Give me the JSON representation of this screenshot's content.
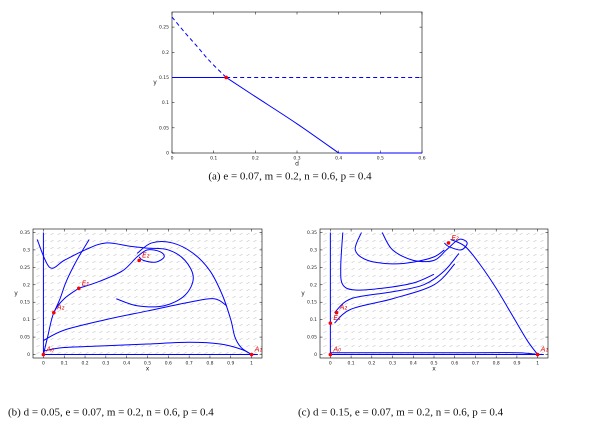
{
  "chart_data": [
    {
      "type": "line",
      "caption": "(a) e = 0.07, m = 0.2, n = 0.6, p = 0.4",
      "xlabel": "d",
      "ylabel": "y",
      "xlim": [
        0,
        0.6
      ],
      "ylim": [
        0,
        0.28
      ],
      "xticks": [
        0,
        0.1,
        0.2,
        0.3,
        0.4,
        0.5,
        0.6
      ],
      "yticks": [
        0,
        0.05,
        0.1,
        0.15,
        0.2,
        0.25
      ],
      "series": [
        {
          "color": "#0000ff",
          "dash": false,
          "x": [
            0,
            0.13
          ],
          "values": [
            0.15,
            0.15
          ]
        },
        {
          "color": "#0000ff",
          "dash": true,
          "x": [
            0.13,
            0.6
          ],
          "values": [
            0.15,
            0.15
          ]
        },
        {
          "color": "#0000ff",
          "dash": true,
          "x": [
            0,
            0.03,
            0.06,
            0.09,
            0.13
          ],
          "values": [
            0.27,
            0.24,
            0.212,
            0.183,
            0.15
          ]
        },
        {
          "color": "#0000ff",
          "dash": false,
          "x": [
            0.13,
            0.2,
            0.3,
            0.4
          ],
          "values": [
            0.15,
            0.112,
            0.058,
            0
          ]
        },
        {
          "color": "#0000ff",
          "dash": false,
          "x": [
            0.4,
            0.6
          ],
          "values": [
            0,
            0
          ]
        }
      ],
      "points": [
        {
          "x": 0.13,
          "y": 0.15,
          "color": "#ff0000"
        }
      ]
    },
    {
      "type": "line",
      "caption": "(b) d = 0.05, e = 0.07, m = 0.2, n = 0.6, p = 0.4",
      "xlabel": "x",
      "ylabel": "y",
      "xlim": [
        -0.05,
        1.05
      ],
      "ylim": [
        -0.01,
        0.36
      ],
      "vector_field": true,
      "xticks": [
        0,
        0.1,
        0.2,
        0.3,
        0.4,
        0.5,
        0.6,
        0.7,
        0.8,
        0.9,
        1
      ],
      "yticks": [
        0,
        0.05,
        0.1,
        0.15,
        0.2,
        0.25,
        0.3,
        0.35
      ],
      "series": [
        {
          "color": "#0000ff",
          "dash": false,
          "x": [
            0,
            0
          ],
          "values": [
            0.35,
            0
          ]
        },
        {
          "color": "#0000ff",
          "dash": false,
          "x": [
            0,
            1.03
          ],
          "values": [
            0,
            0
          ]
        },
        {
          "color": "#0000ff",
          "dash": false,
          "x": [
            0,
            0.02,
            0.05,
            0.1,
            0.17
          ],
          "values": [
            0,
            0.05,
            0.12,
            0.16,
            0.19
          ]
        },
        {
          "color": "#0000ff",
          "dash": false,
          "x": [
            0.22,
            0.16,
            0.11,
            0.08,
            0.05
          ],
          "values": [
            0.33,
            0.27,
            0.21,
            0.16,
            0.12
          ]
        },
        {
          "color": "#0000ff",
          "dash": false,
          "x": [
            0.17,
            0.27,
            0.38,
            0.45,
            0.5,
            0.56,
            0.58,
            0.54,
            0.48,
            0.46
          ],
          "values": [
            0.19,
            0.21,
            0.24,
            0.28,
            0.3,
            0.295,
            0.28,
            0.265,
            0.27,
            0.28
          ]
        },
        {
          "color": "#0000ff",
          "dash": false,
          "x": [
            -0.03,
            0.03,
            0.1,
            0.2,
            0.3,
            0.42,
            0.5,
            0.6,
            0.68,
            0.72,
            0.68,
            0.58,
            0.45,
            0.35
          ],
          "values": [
            0.33,
            0.25,
            0.27,
            0.3,
            0.32,
            0.31,
            0.305,
            0.3,
            0.27,
            0.22,
            0.17,
            0.14,
            0.14,
            0.16
          ]
        },
        {
          "color": "#0000ff",
          "dash": false,
          "x": [
            0.45,
            0.52,
            0.62,
            0.72,
            0.8,
            0.86,
            0.9,
            0.92,
            0.95,
            1
          ],
          "values": [
            0.29,
            0.32,
            0.32,
            0.29,
            0.24,
            0.17,
            0.1,
            0.05,
            0.02,
            0
          ]
        },
        {
          "color": "#0000ff",
          "dash": false,
          "x": [
            0,
            0.1,
            0.3,
            0.5,
            0.7,
            0.82,
            0.88
          ],
          "values": [
            0.04,
            0.07,
            0.1,
            0.125,
            0.15,
            0.16,
            0.14
          ]
        },
        {
          "color": "#0000ff",
          "dash": false,
          "x": [
            0,
            0.1,
            0.3,
            0.5,
            0.7,
            0.85,
            0.95,
            1
          ],
          "values": [
            0.01,
            0.02,
            0.025,
            0.03,
            0.035,
            0.03,
            0.015,
            0
          ]
        }
      ],
      "points": [
        {
          "x": 0,
          "y": 0,
          "color": "#ff0000",
          "label": "A₀"
        },
        {
          "x": 0.05,
          "y": 0.12,
          "color": "#ff0000",
          "label": "A₂"
        },
        {
          "x": 0.17,
          "y": 0.19,
          "color": "#ff0000",
          "label": "E₁"
        },
        {
          "x": 0.46,
          "y": 0.27,
          "color": "#ff0000",
          "label": "E₂"
        },
        {
          "x": 1,
          "y": 0,
          "color": "#ff0000",
          "label": "A₁"
        }
      ]
    },
    {
      "type": "line",
      "caption": "(c) d = 0.15, e = 0.07, m = 0.2, n = 0.6, p = 0.4",
      "xlabel": "x",
      "ylabel": "y",
      "xlim": [
        -0.05,
        1.05
      ],
      "ylim": [
        -0.01,
        0.36
      ],
      "vector_field": true,
      "xticks": [
        0,
        0.1,
        0.2,
        0.3,
        0.4,
        0.5,
        0.6,
        0.7,
        0.8,
        0.9,
        1
      ],
      "yticks": [
        0,
        0.05,
        0.1,
        0.15,
        0.2,
        0.25,
        0.3,
        0.35
      ],
      "series": [
        {
          "color": "#0000ff",
          "dash": false,
          "x": [
            0,
            0
          ],
          "values": [
            0.35,
            0
          ]
        },
        {
          "color": "#0000ff",
          "dash": false,
          "x": [
            0,
            1.03
          ],
          "values": [
            0,
            0
          ]
        },
        {
          "color": "#0000ff",
          "dash": false,
          "x": [
            0.06,
            0.05,
            0.06,
            0.12,
            0.25,
            0.4,
            0.5
          ],
          "values": [
            0.35,
            0.25,
            0.2,
            0.185,
            0.19,
            0.205,
            0.23
          ]
        },
        {
          "color": "#0000ff",
          "dash": false,
          "x": [
            0.15,
            0.12,
            0.18,
            0.3,
            0.4,
            0.5,
            0.55
          ],
          "values": [
            0.35,
            0.3,
            0.27,
            0.26,
            0.265,
            0.28,
            0.3
          ]
        },
        {
          "color": "#0000ff",
          "dash": false,
          "x": [
            0.25,
            0.3,
            0.4,
            0.5,
            0.56,
            0.62,
            0.66,
            0.63,
            0.57,
            0.55
          ],
          "values": [
            0.35,
            0.3,
            0.27,
            0.27,
            0.3,
            0.33,
            0.32,
            0.3,
            0.31,
            0.32
          ]
        },
        {
          "color": "#0000ff",
          "dash": false,
          "x": [
            0.58,
            0.65,
            0.72,
            0.8,
            0.88,
            0.95,
            1
          ],
          "values": [
            0.33,
            0.31,
            0.26,
            0.19,
            0.11,
            0.04,
            0
          ]
        },
        {
          "color": "#0000ff",
          "dash": false,
          "x": [
            0.02,
            0.1,
            0.3,
            0.45,
            0.55,
            0.62
          ],
          "values": [
            0.12,
            0.16,
            0.18,
            0.2,
            0.24,
            0.29
          ]
        },
        {
          "color": "#0000ff",
          "dash": false,
          "x": [
            0.02,
            0.1,
            0.3,
            0.5,
            0.6
          ],
          "values": [
            0.09,
            0.13,
            0.16,
            0.2,
            0.26
          ]
        },
        {
          "color": "#0000ff",
          "dash": false,
          "x": [
            0,
            0.3,
            0.6,
            0.9,
            1
          ],
          "values": [
            0.005,
            0.005,
            0.005,
            0.005,
            0
          ]
        }
      ],
      "points": [
        {
          "x": 0,
          "y": 0,
          "color": "#ff0000",
          "label": "A₀"
        },
        {
          "x": 0,
          "y": 0.09,
          "color": "#ff0000",
          "label": "E₁"
        },
        {
          "x": 0.03,
          "y": 0.12,
          "color": "#ff0000",
          "label": "A₂"
        },
        {
          "x": 0.57,
          "y": 0.32,
          "color": "#ff0000",
          "label": "E₂"
        },
        {
          "x": 1,
          "y": 0,
          "color": "#ff0000",
          "label": "A₁"
        }
      ]
    }
  ]
}
